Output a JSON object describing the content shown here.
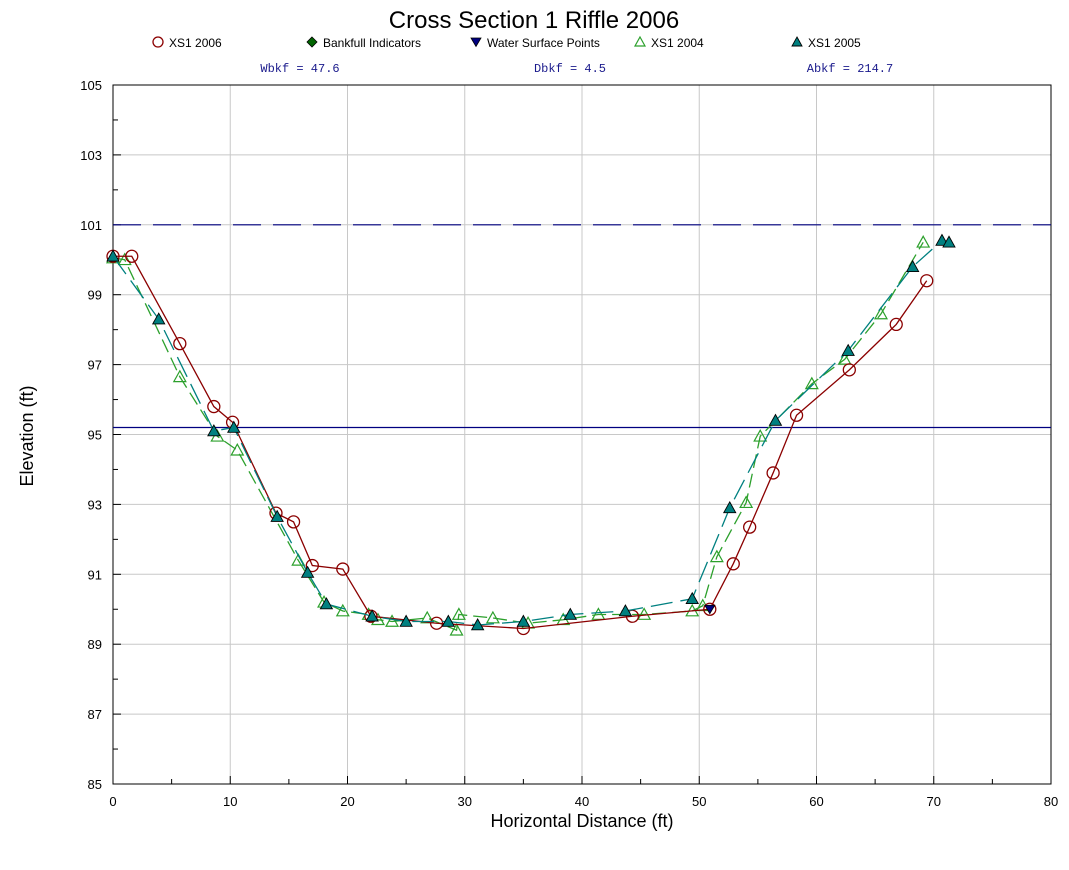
{
  "chart_data": {
    "type": "line",
    "title": "Cross Section 1 Riffle 2006",
    "xlabel": "Horizontal Distance (ft)",
    "ylabel": "Elevation (ft)",
    "xlim": [
      0,
      80
    ],
    "ylim": [
      85,
      105
    ],
    "x_ticks": [
      "0",
      "10",
      "20",
      "30",
      "40",
      "50",
      "60",
      "70",
      "80"
    ],
    "y_ticks": [
      "85",
      "87",
      "89",
      "91",
      "93",
      "95",
      "97",
      "99",
      "101",
      "103",
      "105"
    ],
    "grid": true,
    "legend_position": "top",
    "annotations": [
      {
        "text": "Wbkf = 47.6"
      },
      {
        "text": "Dbkf = 4.5"
      },
      {
        "text": "Abkf = 214.7"
      }
    ],
    "reference_lines": [
      {
        "y": 101.0,
        "style": "dashed",
        "color": "#000080"
      },
      {
        "y": 95.2,
        "style": "solid",
        "color": "#000080"
      }
    ],
    "series": [
      {
        "name": "XS1 2006",
        "marker": "open-circle",
        "color": "#8b0000",
        "x": [
          0.0,
          1.6,
          5.7,
          8.6,
          10.2,
          13.9,
          15.4,
          17.0,
          19.6,
          22.0,
          27.6,
          35.0,
          44.3,
          50.9,
          52.9,
          54.3,
          56.3,
          58.3,
          62.8,
          66.8,
          69.4
        ],
        "y": [
          100.1,
          100.1,
          97.6,
          95.8,
          95.35,
          92.75,
          92.5,
          91.25,
          91.15,
          89.8,
          89.6,
          89.45,
          89.8,
          90.0,
          91.3,
          92.35,
          93.9,
          95.55,
          96.85,
          98.15,
          99.4
        ]
      },
      {
        "name": "Bankfull Indicators",
        "marker": "filled-diamond",
        "color": "#006400",
        "x": [],
        "y": []
      },
      {
        "name": "Water Surface Points",
        "marker": "filled-down-triangle",
        "color": "#000080",
        "x": [
          50.9
        ],
        "y": [
          90.0
        ]
      },
      {
        "name": "XS1 2004",
        "marker": "open-triangle",
        "color": "#2ca02c",
        "x": [
          0.0,
          1.0,
          5.7,
          8.9,
          10.6,
          15.8,
          18.0,
          19.6,
          21.8,
          22.6,
          23.8,
          26.8,
          29.3,
          29.5,
          32.4,
          35.4,
          38.4,
          41.4,
          45.3,
          49.4,
          50.3,
          51.5,
          54.0,
          55.2,
          59.6,
          62.4,
          65.5,
          69.1
        ],
        "y": [
          100.05,
          100.0,
          96.65,
          94.95,
          94.55,
          91.4,
          90.2,
          89.95,
          89.85,
          89.7,
          89.65,
          89.75,
          89.4,
          89.85,
          89.75,
          89.6,
          89.7,
          89.85,
          89.85,
          89.95,
          90.1,
          91.5,
          93.05,
          94.95,
          96.45,
          97.15,
          98.45,
          100.5
        ]
      },
      {
        "name": "XS1 2005",
        "marker": "filled-triangle",
        "color": "#008080",
        "x": [
          0.0,
          3.9,
          8.6,
          10.3,
          14.0,
          16.6,
          18.2,
          22.1,
          25.0,
          28.6,
          31.1,
          35.0,
          39.0,
          43.7,
          49.4,
          52.6,
          56.5,
          62.7,
          68.2,
          70.7,
          71.3
        ],
        "y": [
          100.1,
          98.3,
          95.1,
          95.2,
          92.65,
          91.05,
          90.15,
          89.8,
          89.65,
          89.65,
          89.55,
          89.65,
          89.85,
          89.95,
          90.3,
          92.9,
          95.4,
          97.4,
          99.8,
          100.55,
          100.5
        ]
      }
    ]
  }
}
